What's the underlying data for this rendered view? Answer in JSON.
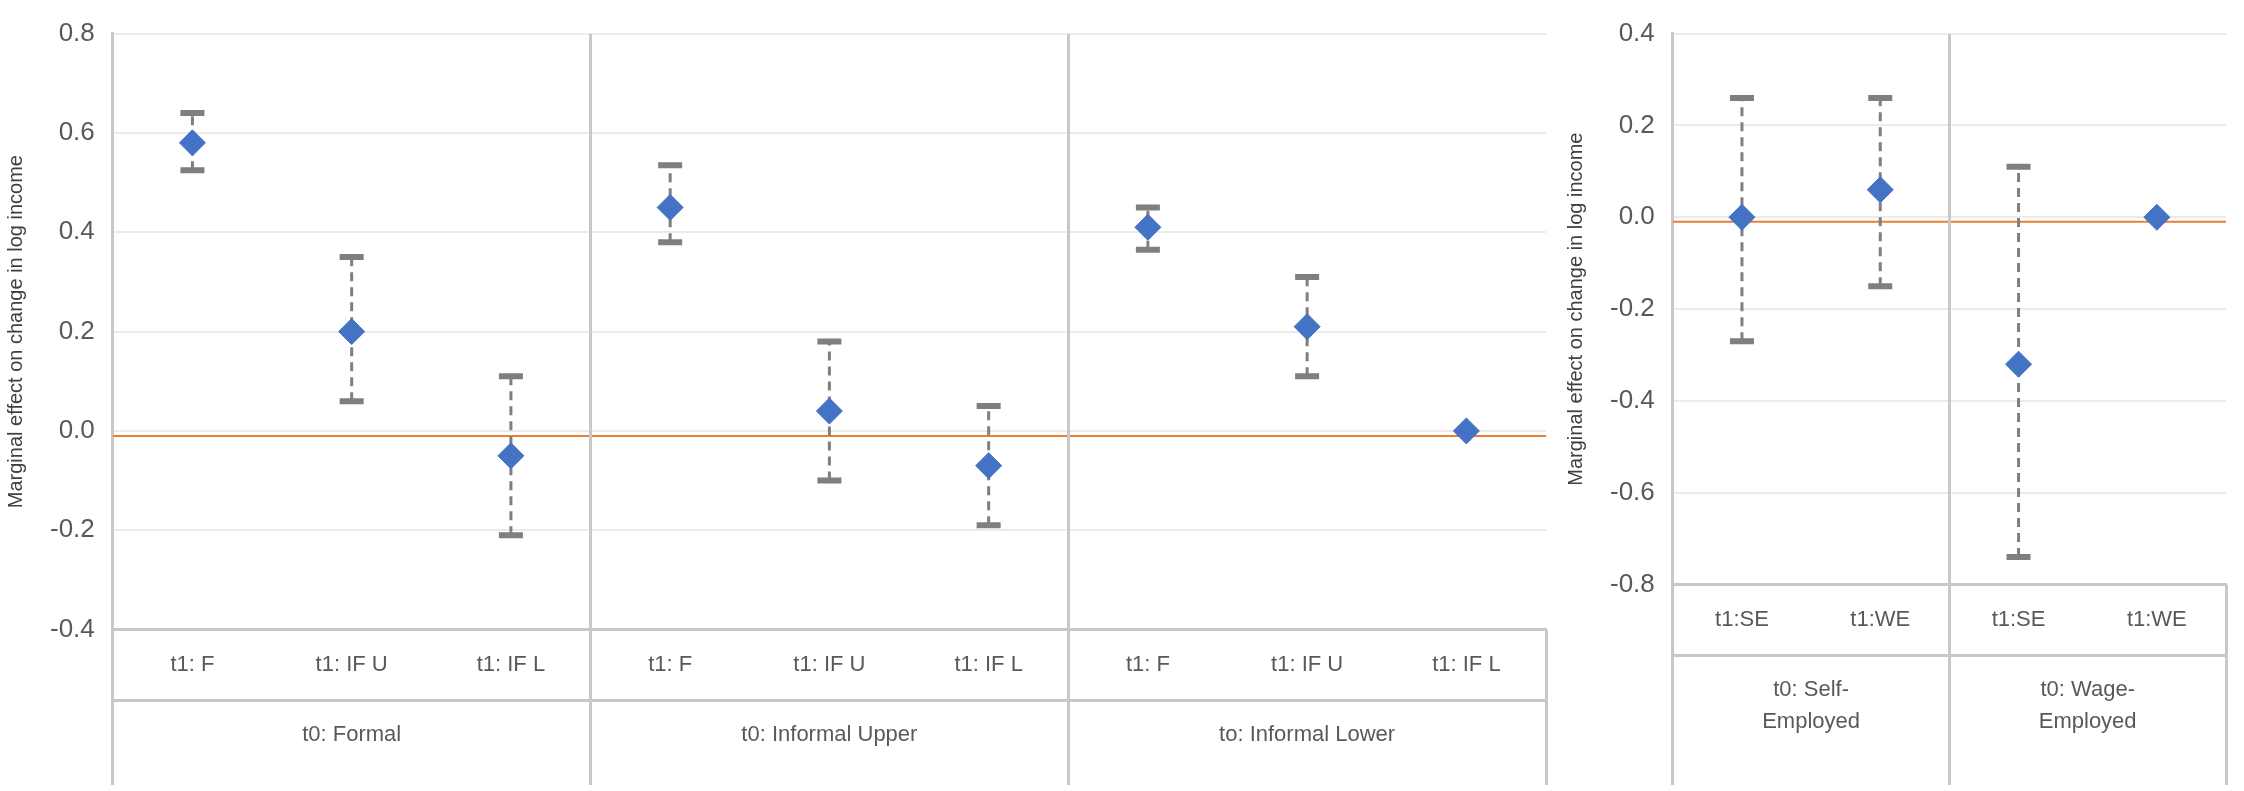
{
  "chart_data": [
    {
      "type": "scatter",
      "ylabel": "Marginal effect on change in log income",
      "categories": [
        "t1: F",
        "t1: IF U",
        "t1: IF L",
        "t1: F",
        "t1: IF U",
        "t1: IF L",
        "t1: F",
        "t1: IF U",
        "t1: IF L"
      ],
      "values": [
        0.58,
        0.2,
        -0.05,
        0.45,
        0.04,
        -0.07,
        0.41,
        0.21,
        0.0
      ],
      "errors": [
        [
          0.525,
          0.64
        ],
        [
          0.06,
          0.35
        ],
        [
          -0.21,
          0.11
        ],
        [
          0.38,
          0.535
        ],
        [
          -0.1,
          0.18
        ],
        [
          -0.19,
          0.05
        ],
        [
          0.365,
          0.45
        ],
        [
          0.11,
          0.31
        ],
        null
      ],
      "color": "#4472c4",
      "marker": "diamond",
      "ylim": [
        -0.4,
        0.8
      ],
      "yticks": [
        {
          "value": -0.4,
          "label": "-0.4"
        },
        {
          "value": -0.2,
          "label": "-0.2"
        },
        {
          "value": 0,
          "label": "0.0"
        },
        {
          "value": 0.2,
          "label": "0.2"
        },
        {
          "value": 0.4,
          "label": "0.4"
        },
        {
          "value": 0.6,
          "label": "0.6"
        },
        {
          "value": 0.8,
          "label": "0.8"
        }
      ],
      "grid": "y",
      "ref_lines": [
        {
          "axis": "y",
          "value": -0.01,
          "color": "#ed7d31"
        }
      ],
      "annotations": [
        "t0: Formal",
        "t0: Informal Upper",
        "to: Informal Lower"
      ]
    },
    {
      "type": "scatter",
      "ylabel": "Marginal effect on change in log income",
      "categories": [
        "t1:SE",
        "t1:WE",
        "t1:SE",
        "t1:WE"
      ],
      "values": [
        0.0,
        0.06,
        -0.32,
        0.0
      ],
      "errors": [
        [
          -0.27,
          0.26
        ],
        [
          -0.15,
          0.26
        ],
        [
          -0.74,
          0.11
        ],
        null
      ],
      "color": "#4472c4",
      "marker": "diamond",
      "ylim": [
        -0.8,
        0.4
      ],
      "yticks": [
        {
          "value": -0.8,
          "label": "-0.8"
        },
        {
          "value": -0.6,
          "label": "-0.6"
        },
        {
          "value": -0.4,
          "label": "-0.4"
        },
        {
          "value": -0.2,
          "label": "-0.2"
        },
        {
          "value": 0,
          "label": "0.0"
        },
        {
          "value": 0.2,
          "label": "0.2"
        },
        {
          "value": 0.4,
          "label": "0.4"
        }
      ],
      "grid": "y",
      "ref_lines": [
        {
          "axis": "y",
          "value": -0.01,
          "color": "#ed7d31"
        }
      ],
      "annotations": [
        "t0: Self-Employed",
        "t0: Wage-Employed"
      ]
    }
  ]
}
